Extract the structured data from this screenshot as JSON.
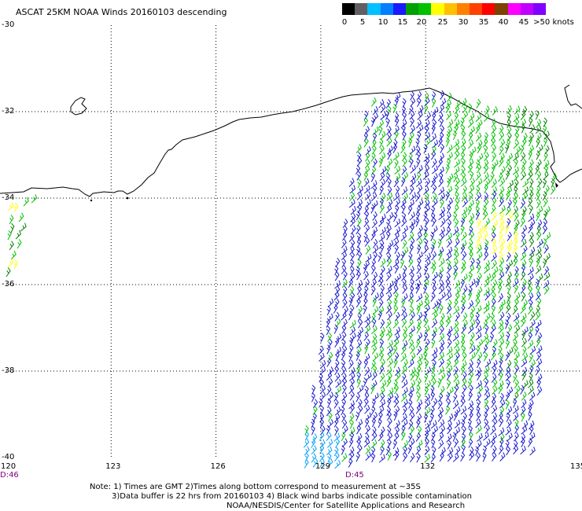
{
  "title": "ASCAT 25KM NOAA Winds 20160103 descending",
  "legend": {
    "colors": [
      "#000000",
      "#606060",
      "#00c0ff",
      "#0080ff",
      "#1a1aff",
      "#00a000",
      "#00c000",
      "#ffff00",
      "#ffc000",
      "#ff8000",
      "#ff4000",
      "#ff0000",
      "#804000",
      "#ff00ff",
      "#c000ff",
      "#8000ff"
    ],
    "labels": [
      "0",
      "5",
      "10",
      "15",
      "20",
      "25",
      "30",
      "35",
      "40",
      "45",
      ">50 knots"
    ]
  },
  "axes": {
    "y_labels": [
      "-30",
      "-32",
      "-34",
      "-36",
      "-38",
      "-40"
    ],
    "x_labels": [
      "120",
      "123",
      "126",
      "129",
      "132",
      "135"
    ]
  },
  "times": [
    "D:46",
    "D:45"
  ],
  "notes": [
    "Note: 1) Times are GMT 2)Times along bottom correspond to measurement at ~35S",
    "3)Data buffer is 22 hrs from 20160103 4) Black wind barbs indicate possible contamination",
    "NOAA/NESDIS/Center for Satellite Applications and Research"
  ],
  "chart_data": {
    "type": "map",
    "xlim": [
      120,
      135
    ],
    "ylim": [
      -40,
      -30
    ],
    "grid": true,
    "wind_speed_colors": {
      "blue": "#1a1acc",
      "green": "#00c000",
      "dark_green": "#008000",
      "yellow": "#ffff00",
      "cyan": "#00a0ff"
    }
  }
}
